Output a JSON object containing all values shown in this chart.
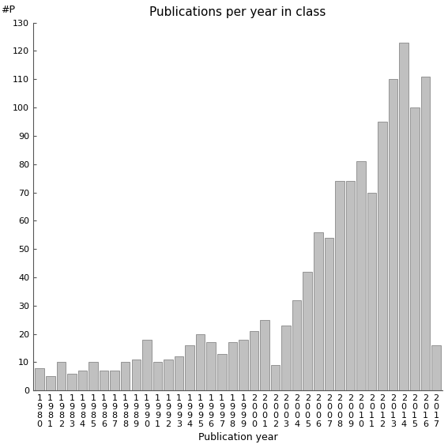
{
  "title": "Publications per year in class",
  "xlabel": "Publication year",
  "ylabel": "#P",
  "years": [
    1980,
    1981,
    1982,
    1983,
    1984,
    1985,
    1986,
    1987,
    1988,
    1989,
    1990,
    1991,
    1992,
    1993,
    1994,
    1995,
    1996,
    1997,
    1998,
    1999,
    2000,
    2001,
    2002,
    2003,
    2004,
    2005,
    2006,
    2007,
    2008,
    2009,
    2010,
    2011,
    2012,
    2013,
    2014,
    2015,
    2016,
    2017
  ],
  "values": [
    8,
    5,
    10,
    6,
    7,
    10,
    7,
    7,
    10,
    11,
    18,
    10,
    11,
    12,
    16,
    20,
    17,
    13,
    17,
    18,
    21,
    25,
    9,
    23,
    32,
    42,
    56,
    54,
    74,
    74,
    81,
    70,
    95,
    110,
    123,
    100,
    111,
    16
  ],
  "bar_color": "#c0c0c0",
  "bar_edgecolor": "#888888",
  "ylim": [
    0,
    130
  ],
  "yticks": [
    0,
    10,
    20,
    30,
    40,
    50,
    60,
    70,
    80,
    90,
    100,
    110,
    120,
    130
  ],
  "bg_color": "#ffffff",
  "title_fontsize": 11,
  "axis_fontsize": 9,
  "tick_fontsize": 8
}
